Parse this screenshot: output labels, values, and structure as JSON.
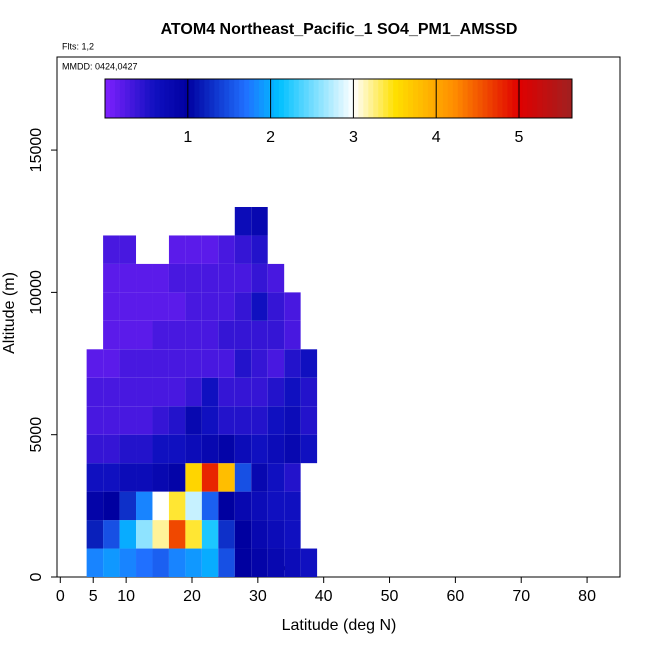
{
  "chart_data": {
    "type": "heatmap",
    "title": "ATOM4 Northeast_Pacific_1 SO4_PM1_AMSSD",
    "annotations": [
      "Flts: 1,2",
      "MMDD: 0424,0427"
    ],
    "x_label": "Latitude (deg N)",
    "y_label": "Altitude (m)",
    "xlim": [
      -0.5,
      85
    ],
    "ylim": [
      0,
      18270
    ],
    "xticks": [
      0,
      5,
      10,
      20,
      30,
      40,
      50,
      60,
      70,
      80
    ],
    "yticks": [
      0,
      5000,
      10000,
      15000
    ],
    "x_edges": [
      4,
      6.5,
      9,
      11.5,
      14,
      16.5,
      19,
      21.5,
      24,
      26.5,
      29,
      31.5,
      34,
      36.5,
      39
    ],
    "y_edges": [
      0,
      1000,
      2000,
      3000,
      4000,
      5000,
      6000,
      7000,
      8000,
      9000,
      10000,
      11000,
      12000,
      13000
    ],
    "values": [
      [
        1.8,
        1.9,
        1.8,
        1.7,
        1.6,
        1.8,
        1.9,
        2.0,
        1.5,
        1.0,
        0.9,
        0.8,
        0.7,
        0.6
      ],
      [
        1.2,
        1.5,
        2.0,
        2.6,
        3.2,
        4.6,
        3.4,
        2.2,
        1.3,
        1.0,
        0.8,
        0.7,
        0.6,
        null
      ],
      [
        0.9,
        1.0,
        1.3,
        1.8,
        3.0,
        3.4,
        2.8,
        1.6,
        1.0,
        0.8,
        0.7,
        0.6,
        0.6,
        null
      ],
      [
        0.6,
        0.6,
        0.7,
        0.7,
        0.8,
        0.9,
        3.6,
        4.8,
        3.8,
        1.5,
        0.8,
        0.6,
        0.5,
        null
      ],
      [
        0.4,
        0.4,
        0.5,
        0.5,
        0.6,
        0.6,
        0.7,
        0.8,
        0.9,
        0.7,
        0.6,
        0.7,
        0.8,
        0.6
      ],
      [
        0.3,
        0.3,
        0.3,
        0.3,
        0.4,
        0.5,
        0.8,
        0.6,
        0.5,
        0.5,
        0.5,
        0.6,
        0.7,
        0.5
      ],
      [
        0.3,
        0.3,
        0.3,
        0.3,
        0.3,
        0.3,
        0.4,
        0.6,
        0.4,
        0.4,
        0.4,
        0.5,
        0.6,
        0.5
      ],
      [
        0.2,
        0.2,
        0.3,
        0.3,
        0.3,
        0.3,
        0.3,
        0.3,
        0.3,
        0.5,
        0.4,
        0.3,
        0.5,
        0.6
      ],
      [
        null,
        0.2,
        0.2,
        0.2,
        0.3,
        0.3,
        0.3,
        0.3,
        0.4,
        0.4,
        0.4,
        0.4,
        0.3,
        null
      ],
      [
        null,
        0.2,
        0.2,
        0.2,
        0.2,
        0.2,
        0.3,
        0.3,
        0.3,
        0.4,
        0.6,
        0.4,
        0.3,
        null
      ],
      [
        null,
        0.2,
        0.2,
        0.2,
        0.2,
        0.3,
        0.3,
        0.3,
        0.3,
        0.3,
        0.4,
        0.3,
        null,
        null
      ],
      [
        null,
        0.3,
        0.3,
        null,
        null,
        0.2,
        0.2,
        0.2,
        0.3,
        0.4,
        0.5,
        null,
        null,
        null
      ],
      [
        null,
        null,
        null,
        null,
        null,
        null,
        null,
        null,
        null,
        0.7,
        0.8,
        null,
        null,
        null
      ]
    ],
    "colorbar": {
      "lim": [
        0,
        5.64
      ],
      "ticks": [
        1,
        2,
        3,
        4,
        5
      ]
    },
    "colorscale": [
      [
        0,
        "#8020ff"
      ],
      [
        0.6,
        "#1010c0"
      ],
      [
        1,
        "#0000a0"
      ],
      [
        1.7,
        "#2070ff"
      ],
      [
        2.1,
        "#00c0ff"
      ],
      [
        3,
        "#ffffff"
      ],
      [
        3.5,
        "#ffe000"
      ],
      [
        4.2,
        "#ff9000"
      ],
      [
        5,
        "#e00000"
      ],
      [
        5.64,
        "#a02020"
      ]
    ]
  }
}
